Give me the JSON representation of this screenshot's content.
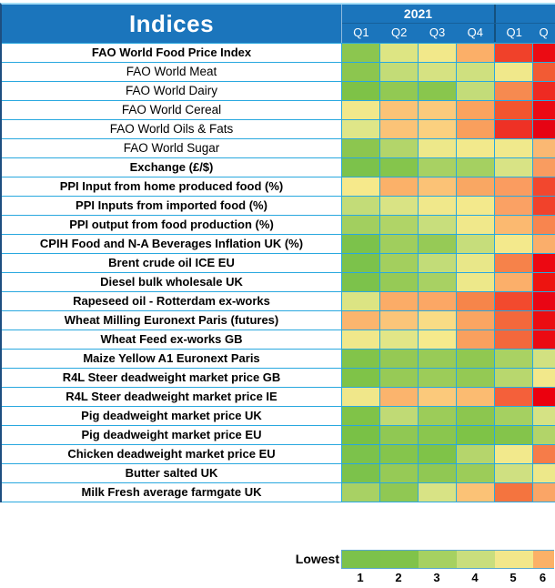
{
  "colors": {
    "header_bg": "#1B75BC",
    "grid": "#29A8DF",
    "group_divider": "#14517F",
    "outer_border": "#1D4E80",
    "top_strip": "#A6DFF7",
    "legend_border": "#5BA7CF"
  },
  "chart_data": {
    "type": "heatmap",
    "title": "Indices",
    "column_groups": [
      {
        "label": "2021",
        "span": 4
      },
      {
        "label": "",
        "span": 2
      }
    ],
    "columns": [
      "Q1",
      "Q2",
      "Q3",
      "Q4",
      "Q1",
      "Q"
    ],
    "legend": {
      "label": "Lowest",
      "ticks": [
        "1",
        "2",
        "3",
        "4",
        "5",
        "6"
      ],
      "colors": [
        "#7CC24B",
        "#80C34A",
        "#A6D161",
        "#C9DE7D",
        "#F2E78A",
        "#FBB167"
      ]
    },
    "rows": [
      {
        "label": "FAO World Food Price Index",
        "bold": true,
        "cells": [
          "#8CC64F",
          "#DDE583",
          "#F2E88A",
          "#FBAF68",
          "#F0412A",
          "#EB0B13"
        ]
      },
      {
        "label": "FAO World Meat",
        "bold": false,
        "cells": [
          "#8CC64F",
          "#C3DC77",
          "#D6E282",
          "#CFE07F",
          "#F0E88B",
          "#F25B34"
        ]
      },
      {
        "label": "FAO World Dairy",
        "bold": false,
        "cells": [
          "#7EC247",
          "#92C953",
          "#89C64D",
          "#C3DC79",
          "#F68A50",
          "#EE2A22"
        ]
      },
      {
        "label": "FAO World Cereal",
        "bold": false,
        "cells": [
          "#F2E88B",
          "#FBC377",
          "#FBCA7C",
          "#FAA35F",
          "#F2552F",
          "#EB0A14"
        ]
      },
      {
        "label": "FAO World Oils & Fats",
        "bold": false,
        "cells": [
          "#DFE688",
          "#FBC377",
          "#FBD07F",
          "#F99F5D",
          "#EE3125",
          "#E60313"
        ]
      },
      {
        "label": "FAO World Sugar",
        "bold": false,
        "cells": [
          "#8CC64F",
          "#B3D56A",
          "#EDE88A",
          "#F2E98C",
          "#F0E98C",
          "#FAB873"
        ]
      },
      {
        "label": "Exchange (£/$)",
        "bold": true,
        "cells": [
          "#7CC24B",
          "#85C54C",
          "#A8D163",
          "#A5D061",
          "#D8E385",
          "#F99C60"
        ]
      },
      {
        "label": "PPI Input from home produced food (%)",
        "bold": true,
        "cells": [
          "#F6E98B",
          "#FBB169",
          "#FBC276",
          "#F9A763",
          "#FA9C60",
          "#F2472E"
        ]
      },
      {
        "label": "PPI Inputs from imported food (%)",
        "bold": true,
        "cells": [
          "#C3DC78",
          "#D9E384",
          "#F0E88B",
          "#F3E98C",
          "#FAA164",
          "#F1422B"
        ]
      },
      {
        "label": "PPI output from food production (%)",
        "bold": true,
        "cells": [
          "#A2CF5F",
          "#B0D467",
          "#C8DE7C",
          "#F0E88B",
          "#FBB970",
          "#F8854F"
        ]
      },
      {
        "label": "CPIH Food and N-A Beverages Inflation UK (%)",
        "bold": true,
        "cells": [
          "#7CC24B",
          "#A0CE5D",
          "#96CA56",
          "#C6DD7B",
          "#F3E98C",
          "#FAAE6B"
        ]
      },
      {
        "label": "Brent crude oil ICE EU",
        "bold": true,
        "cells": [
          "#7CC24B",
          "#A3CF5E",
          "#C2DC78",
          "#E8E789",
          "#F6824A",
          "#EC0812"
        ]
      },
      {
        "label": "Diesel bulk wholesale UK",
        "bold": true,
        "cells": [
          "#7CC24B",
          "#96CA56",
          "#A8D163",
          "#EDE88A",
          "#FBAF6A",
          "#ED1410"
        ]
      },
      {
        "label": "Rapeseed oil - Rotterdam ex-works",
        "bold": true,
        "cells": [
          "#DCE483",
          "#FBAC67",
          "#FBA765",
          "#F6854A",
          "#F24A2E",
          "#E90514"
        ]
      },
      {
        "label": "Wheat Milling Euronext Paris (futures)",
        "bold": true,
        "cells": [
          "#FBB56E",
          "#FBC579",
          "#F9DC85",
          "#FAA562",
          "#F4683C",
          "#EB0D12"
        ]
      },
      {
        "label": "Wheat Feed ex-works GB",
        "bold": true,
        "cells": [
          "#F0E88B",
          "#E2E687",
          "#F6EA8C",
          "#F9A05E",
          "#F3683C",
          "#EB0A12"
        ]
      },
      {
        "label": "Maize Yellow A1 Euronext Paris",
        "bold": true,
        "cells": [
          "#82C44A",
          "#95C954",
          "#98CB57",
          "#90C851",
          "#A9D263",
          "#D2E181"
        ]
      },
      {
        "label": "R4L Steer deadweight market price GB",
        "bold": true,
        "cells": [
          "#7FC348",
          "#97CA56",
          "#9CCC59",
          "#94C954",
          "#B8D76E",
          "#F2E88B"
        ]
      },
      {
        "label": "R4L Steer deadweight market price IE",
        "bold": true,
        "cells": [
          "#F0E78A",
          "#FBB46D",
          "#FBC97B",
          "#FBBB71",
          "#F4603A",
          "#EB000E"
        ]
      },
      {
        "label": "Pig deadweight market price UK",
        "bold": true,
        "cells": [
          "#80C348",
          "#C0DA75",
          "#9CCC59",
          "#8CC64F",
          "#A5D061",
          "#D5E284"
        ]
      },
      {
        "label": "Pig deadweight market price EU",
        "bold": true,
        "cells": [
          "#79C146",
          "#90C853",
          "#8AC64E",
          "#7EC347",
          "#84C44B",
          "#B2D469"
        ]
      },
      {
        "label": "Chicken deadweight market price EU",
        "bold": true,
        "cells": [
          "#7CC24B",
          "#85C54C",
          "#7FC348",
          "#B5D56C",
          "#F2E98C",
          "#F67C49"
        ]
      },
      {
        "label": "Butter salted UK",
        "bold": true,
        "cells": [
          "#7CC24B",
          "#96CA56",
          "#90C853",
          "#9CCC59",
          "#CFE081",
          "#EDE88A"
        ]
      },
      {
        "label": "Milk Fresh average farmgate UK",
        "bold": true,
        "cells": [
          "#A8D164",
          "#90C853",
          "#D8E385",
          "#FBC276",
          "#F4743F",
          "#FAA566"
        ]
      }
    ]
  }
}
